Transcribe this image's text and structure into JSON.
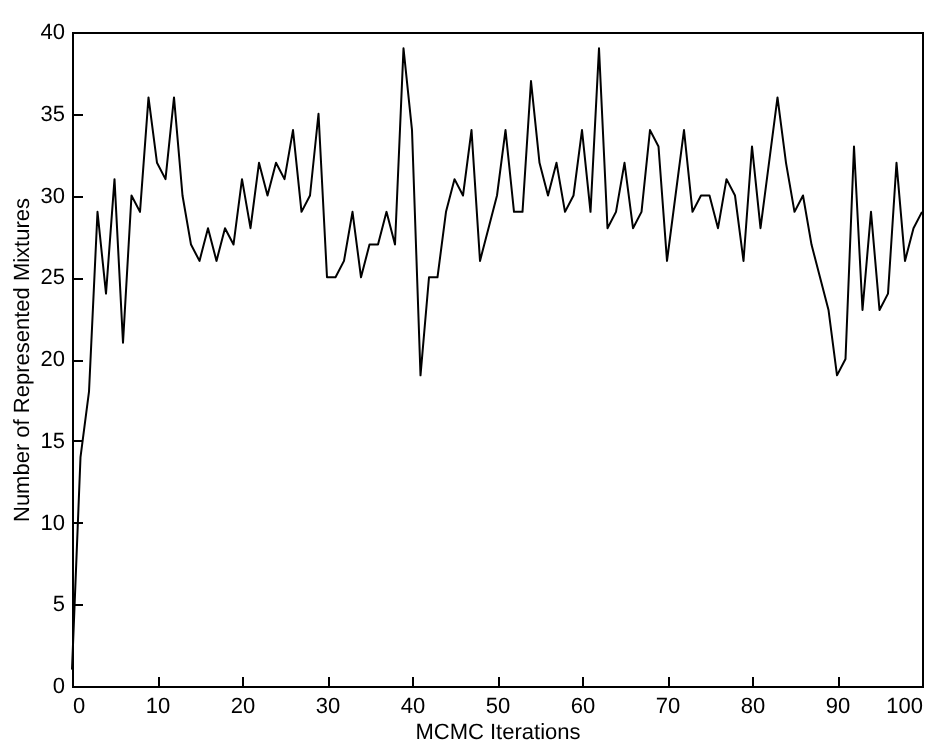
{
  "chart_data": {
    "type": "line",
    "xlabel": "MCMC Iterations",
    "ylabel": "Number of Represented Mixtures",
    "x": [
      0,
      1,
      2,
      3,
      4,
      5,
      6,
      7,
      8,
      9,
      10,
      11,
      12,
      13,
      14,
      15,
      16,
      17,
      18,
      19,
      20,
      21,
      22,
      23,
      24,
      25,
      26,
      27,
      28,
      29,
      30,
      31,
      32,
      33,
      34,
      35,
      36,
      37,
      38,
      39,
      40,
      41,
      42,
      43,
      44,
      45,
      46,
      47,
      48,
      49,
      50,
      51,
      52,
      53,
      54,
      55,
      56,
      57,
      58,
      59,
      60,
      61,
      62,
      63,
      64,
      65,
      66,
      67,
      68,
      69,
      70,
      71,
      72,
      73,
      74,
      75,
      76,
      77,
      78,
      79,
      80,
      81,
      82,
      83,
      84,
      85,
      86,
      87,
      88,
      89,
      90,
      91,
      92,
      93,
      94,
      95,
      96,
      97,
      98,
      99,
      100
    ],
    "series": [
      {
        "color": "#000000",
        "values": [
          1,
          14,
          18,
          29,
          24,
          31,
          21,
          30,
          29,
          36,
          32,
          31,
          36,
          30,
          27,
          26,
          28,
          26,
          28,
          27,
          31,
          28,
          32,
          30,
          32,
          31,
          34,
          29,
          30,
          35,
          25,
          25,
          26,
          29,
          25,
          27,
          27,
          29,
          27,
          39,
          34,
          19,
          25,
          25,
          29,
          31,
          30,
          34,
          26,
          28,
          30,
          34,
          29,
          29,
          37,
          32,
          30,
          32,
          29,
          30,
          34,
          29,
          39,
          28,
          29,
          32,
          28,
          29,
          34,
          33,
          26,
          30,
          34,
          29,
          30,
          30,
          28,
          31,
          30,
          26,
          33,
          28,
          32,
          36,
          32,
          29,
          30,
          27,
          25,
          23,
          19,
          20,
          33,
          23,
          29,
          23,
          24,
          32,
          26,
          28,
          29
        ]
      }
    ],
    "xlim": [
      0,
      100
    ],
    "xticks": [
      0,
      10,
      20,
      30,
      40,
      50,
      60,
      70,
      80,
      90,
      100
    ],
    "ylim": [
      0,
      40
    ],
    "yticks": [
      0,
      5,
      10,
      15,
      20,
      25,
      30,
      35,
      40
    ],
    "grid": false,
    "legend": false,
    "marker": "none",
    "line_style": "solid"
  }
}
